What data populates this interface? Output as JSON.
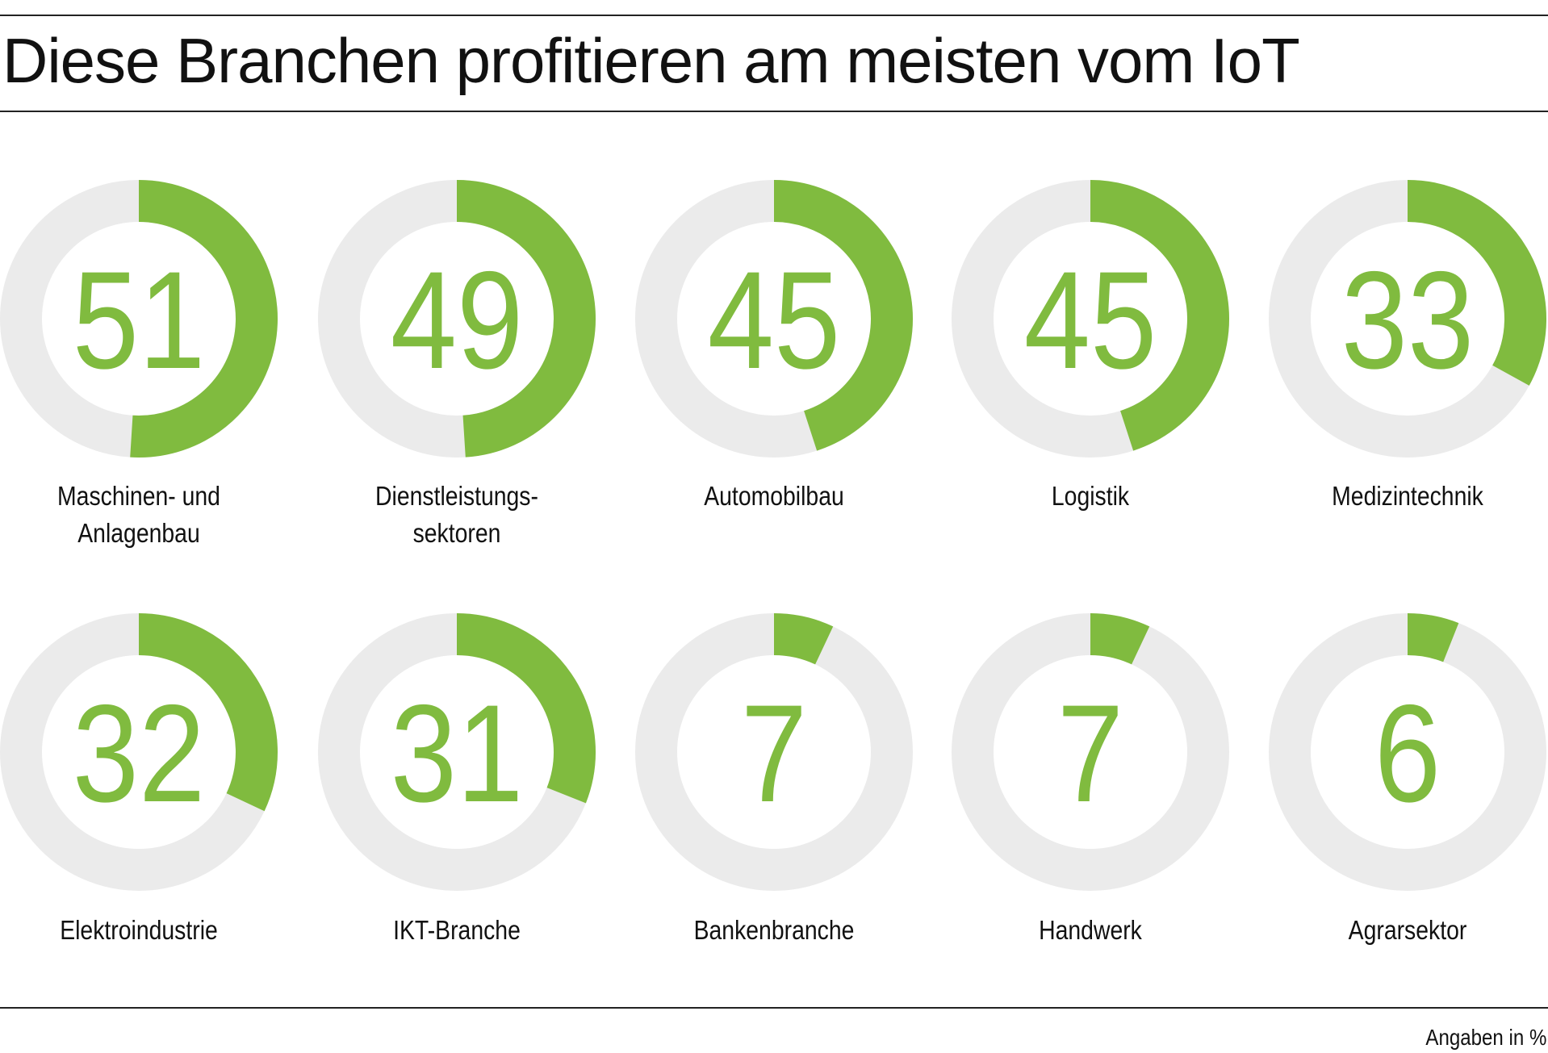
{
  "chart_data": {
    "type": "donut",
    "title": "Diese Branchen profitieren am meisten vom IoT",
    "unit_note": "Angaben in %",
    "range": [
      0,
      100
    ],
    "colors": {
      "value": "#80bb3f",
      "remainder": "#ebebeb"
    },
    "items": [
      {
        "label_lines": [
          "Maschinen- und",
          "Anlagenbau"
        ],
        "value": 51
      },
      {
        "label_lines": [
          "Dienstleistungs-",
          "sektoren"
        ],
        "value": 49
      },
      {
        "label_lines": [
          "Automobilbau"
        ],
        "value": 45
      },
      {
        "label_lines": [
          "Logistik"
        ],
        "value": 45
      },
      {
        "label_lines": [
          "Medizintechnik"
        ],
        "value": 33
      },
      {
        "label_lines": [
          "Elektroindustrie"
        ],
        "value": 32
      },
      {
        "label_lines": [
          "IKT-Branche"
        ],
        "value": 31
      },
      {
        "label_lines": [
          "Bankenbranche"
        ],
        "value": 7
      },
      {
        "label_lines": [
          "Handwerk"
        ],
        "value": 7
      },
      {
        "label_lines": [
          "Agrarsektor"
        ],
        "value": 6
      }
    ]
  }
}
